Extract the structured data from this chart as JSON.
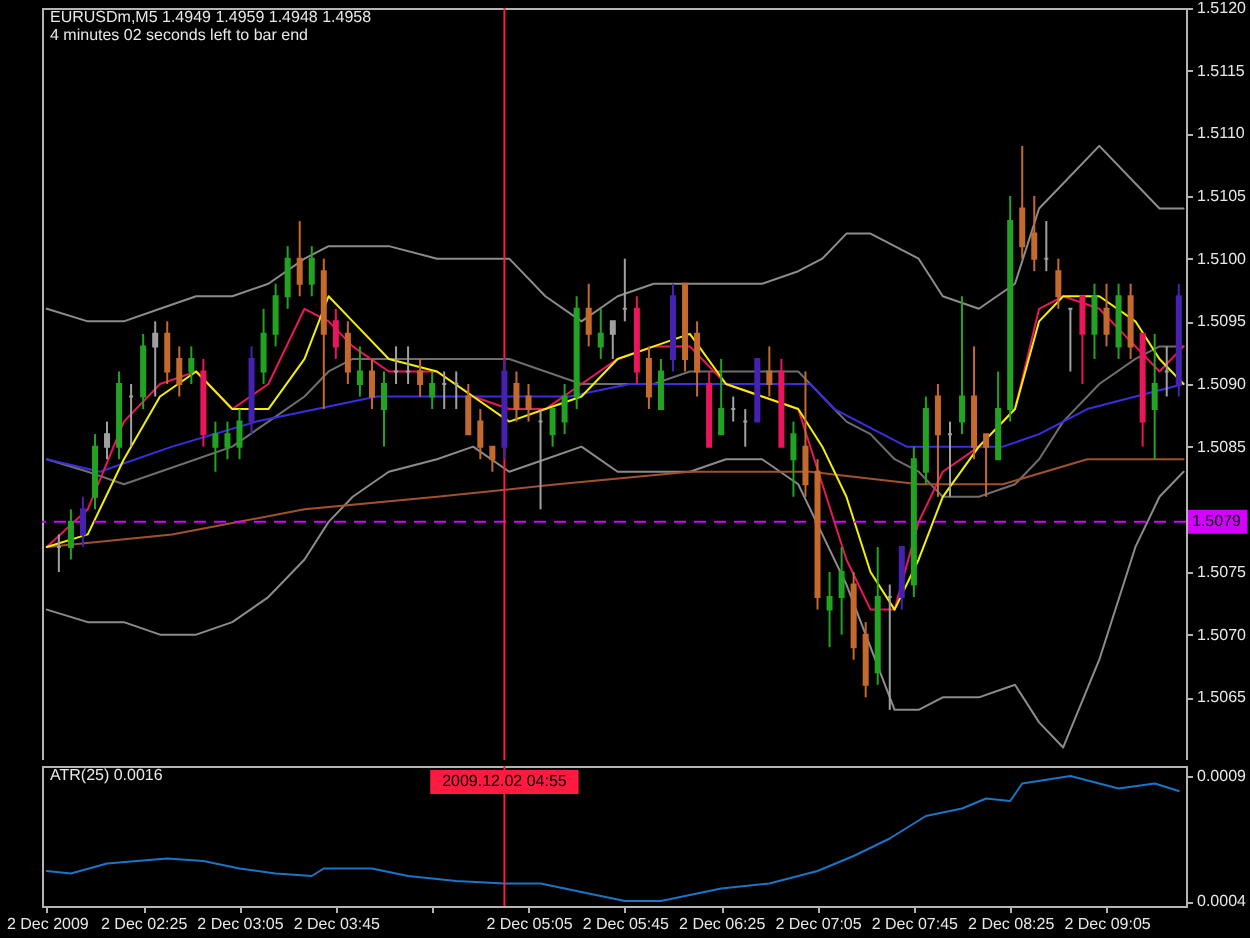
{
  "chart_data": [
    {
      "type": "candlestick",
      "title": "EURUSDm,M5 1.4949 1.4959 1.4948 1.4958",
      "subtitle": "4 minutes 02 seconds left to bar end",
      "x": [
        "2009-12-02T01:50",
        "2009-12-02T01:55",
        "2009-12-02T02:00",
        "2009-12-02T02:05",
        "2009-12-02T02:10",
        "2009-12-02T02:15",
        "2009-12-02T02:20",
        "2009-12-02T02:25",
        "2009-12-02T02:30",
        "2009-12-02T02:35",
        "2009-12-02T02:40",
        "2009-12-02T02:45",
        "2009-12-02T02:50",
        "2009-12-02T02:55",
        "2009-12-02T03:00",
        "2009-12-02T03:05",
        "2009-12-02T03:10",
        "2009-12-02T03:15",
        "2009-12-02T03:20",
        "2009-12-02T03:25",
        "2009-12-02T03:30",
        "2009-12-02T03:35",
        "2009-12-02T03:40",
        "2009-12-02T03:45",
        "2009-12-02T03:50",
        "2009-12-02T03:55",
        "2009-12-02T04:00",
        "2009-12-02T04:05",
        "2009-12-02T04:10",
        "2009-12-02T04:15",
        "2009-12-02T04:20",
        "2009-12-02T04:25",
        "2009-12-02T04:30",
        "2009-12-02T04:35",
        "2009-12-02T04:40",
        "2009-12-02T04:45",
        "2009-12-02T04:50",
        "2009-12-02T04:55",
        "2009-12-02T05:00",
        "2009-12-02T05:05",
        "2009-12-02T05:10",
        "2009-12-02T05:15",
        "2009-12-02T05:20",
        "2009-12-02T05:25",
        "2009-12-02T05:30",
        "2009-12-02T05:35",
        "2009-12-02T05:40",
        "2009-12-02T05:45",
        "2009-12-02T05:50",
        "2009-12-02T05:55",
        "2009-12-02T06:00",
        "2009-12-02T06:05",
        "2009-12-02T06:10",
        "2009-12-02T06:15",
        "2009-12-02T06:20",
        "2009-12-02T06:25",
        "2009-12-02T06:30",
        "2009-12-02T06:35",
        "2009-12-02T06:40",
        "2009-12-02T06:45",
        "2009-12-02T06:50",
        "2009-12-02T06:55",
        "2009-12-02T07:00",
        "2009-12-02T07:05",
        "2009-12-02T07:10",
        "2009-12-02T07:15",
        "2009-12-02T07:20",
        "2009-12-02T07:25",
        "2009-12-02T07:30",
        "2009-12-02T07:35",
        "2009-12-02T07:40",
        "2009-12-02T07:45",
        "2009-12-02T07:50",
        "2009-12-02T07:55",
        "2009-12-02T08:00",
        "2009-12-02T08:05",
        "2009-12-02T08:10",
        "2009-12-02T08:15",
        "2009-12-02T08:20",
        "2009-12-02T08:25",
        "2009-12-02T08:30",
        "2009-12-02T08:35",
        "2009-12-02T08:40",
        "2009-12-02T08:45",
        "2009-12-02T08:50",
        "2009-12-02T08:55",
        "2009-12-02T09:00",
        "2009-12-02T09:05",
        "2009-12-02T09:10",
        "2009-12-02T09:15",
        "2009-12-02T09:20",
        "2009-12-02T09:25",
        "2009-12-02T09:30",
        "2009-12-02T09:35"
      ],
      "ohlc": [
        [
          1.5077,
          1.5078,
          1.5075,
          1.5077
        ],
        [
          1.5077,
          1.508,
          1.5076,
          1.5079
        ],
        [
          1.5078,
          1.5081,
          1.5077,
          1.508
        ],
        [
          1.5081,
          1.5086,
          1.508,
          1.5085
        ],
        [
          1.5085,
          1.5087,
          1.5084,
          1.5086
        ],
        [
          1.5085,
          1.5091,
          1.5084,
          1.509
        ],
        [
          1.5089,
          1.509,
          1.5085,
          1.5089
        ],
        [
          1.5089,
          1.5094,
          1.5088,
          1.5093
        ],
        [
          1.5093,
          1.5095,
          1.5089,
          1.5094
        ],
        [
          1.5094,
          1.5095,
          1.509,
          1.5091
        ],
        [
          1.5092,
          1.5093,
          1.5089,
          1.509
        ],
        [
          1.5091,
          1.5093,
          1.509,
          1.5092
        ],
        [
          1.5091,
          1.5092,
          1.5085,
          1.5086
        ],
        [
          1.5085,
          1.5087,
          1.5083,
          1.5086
        ],
        [
          1.5085,
          1.5087,
          1.5084,
          1.5086
        ],
        [
          1.5085,
          1.5088,
          1.5084,
          1.5087
        ],
        [
          1.5087,
          1.5093,
          1.5086,
          1.5092
        ],
        [
          1.5091,
          1.5096,
          1.509,
          1.5094
        ],
        [
          1.5094,
          1.5098,
          1.5093,
          1.5097
        ],
        [
          1.5097,
          1.5101,
          1.5096,
          1.51
        ],
        [
          1.51,
          1.5103,
          1.5097,
          1.5098
        ],
        [
          1.5098,
          1.5101,
          1.5097,
          1.51
        ],
        [
          1.5099,
          1.51,
          1.5088,
          1.5094
        ],
        [
          1.5095,
          1.5096,
          1.5092,
          1.5093
        ],
        [
          1.5094,
          1.5095,
          1.509,
          1.5091
        ],
        [
          1.509,
          1.5093,
          1.5089,
          1.5091
        ],
        [
          1.5091,
          1.5092,
          1.5088,
          1.5089
        ],
        [
          1.5088,
          1.5091,
          1.5085,
          1.509
        ],
        [
          1.5091,
          1.5093,
          1.509,
          1.5091
        ],
        [
          1.5091,
          1.5093,
          1.509,
          1.5091
        ],
        [
          1.5091,
          1.5092,
          1.5089,
          1.509
        ],
        [
          1.5089,
          1.5091,
          1.5088,
          1.509
        ],
        [
          1.509,
          1.5091,
          1.5088,
          1.509
        ],
        [
          1.509,
          1.5091,
          1.5088,
          1.509
        ],
        [
          1.5089,
          1.509,
          1.5086,
          1.5086
        ],
        [
          1.5087,
          1.5088,
          1.5084,
          1.5085
        ],
        [
          1.5085,
          1.5085,
          1.5083,
          1.5084
        ],
        [
          1.5085,
          1.5092,
          1.5084,
          1.5091
        ],
        [
          1.509,
          1.5091,
          1.5087,
          1.5088
        ],
        [
          1.5089,
          1.509,
          1.5087,
          1.5088
        ],
        [
          1.5087,
          1.5088,
          1.508,
          1.5087
        ],
        [
          1.5086,
          1.5088,
          1.5085,
          1.5088
        ],
        [
          1.5087,
          1.509,
          1.5086,
          1.5089
        ],
        [
          1.5089,
          1.5097,
          1.5088,
          1.5096
        ],
        [
          1.5096,
          1.5098,
          1.5093,
          1.5094
        ],
        [
          1.5093,
          1.5096,
          1.5092,
          1.5094
        ],
        [
          1.5094,
          1.5095,
          1.5092,
          1.5095
        ],
        [
          1.5096,
          1.51,
          1.5095,
          1.5096
        ],
        [
          1.5096,
          1.5097,
          1.509,
          1.5091
        ],
        [
          1.5092,
          1.5093,
          1.5088,
          1.5089
        ],
        [
          1.5088,
          1.5092,
          1.5088,
          1.5091
        ],
        [
          1.5092,
          1.5098,
          1.5091,
          1.5097
        ],
        [
          1.5098,
          1.5098,
          1.5091,
          1.5092
        ],
        [
          1.5094,
          1.5095,
          1.5089,
          1.5091
        ],
        [
          1.509,
          1.5091,
          1.5085,
          1.5085
        ],
        [
          1.5086,
          1.5092,
          1.5086,
          1.5088
        ],
        [
          1.5088,
          1.5089,
          1.5087,
          1.5088
        ],
        [
          1.5087,
          1.5088,
          1.5085,
          1.5087
        ],
        [
          1.5087,
          1.5092,
          1.5087,
          1.5092
        ],
        [
          1.5091,
          1.5093,
          1.5089,
          1.509
        ],
        [
          1.5091,
          1.5092,
          1.5085,
          1.5085
        ],
        [
          1.5084,
          1.5087,
          1.5081,
          1.5086
        ],
        [
          1.5085,
          1.5091,
          1.5081,
          1.5082
        ],
        [
          1.5083,
          1.5084,
          1.5072,
          1.5073
        ],
        [
          1.5072,
          1.5075,
          1.5069,
          1.5073
        ],
        [
          1.5073,
          1.5077,
          1.507,
          1.5075
        ],
        [
          1.5074,
          1.5075,
          1.5068,
          1.5069
        ],
        [
          1.507,
          1.5071,
          1.5065,
          1.5066
        ],
        [
          1.5067,
          1.5077,
          1.5066,
          1.5073
        ],
        [
          1.5073,
          1.5074,
          1.5064,
          1.5073
        ],
        [
          1.5073,
          1.5077,
          1.5072,
          1.5077
        ],
        [
          1.5074,
          1.5085,
          1.5073,
          1.5084
        ],
        [
          1.5083,
          1.5089,
          1.5082,
          1.5088
        ],
        [
          1.5089,
          1.509,
          1.5081,
          1.5086
        ],
        [
          1.5086,
          1.5087,
          1.5081,
          1.5086
        ],
        [
          1.5087,
          1.5097,
          1.5086,
          1.5089
        ],
        [
          1.5089,
          1.5093,
          1.5084,
          1.5085
        ],
        [
          1.5086,
          1.5086,
          1.5081,
          1.5085
        ],
        [
          1.5084,
          1.5091,
          1.5084,
          1.5088
        ],
        [
          1.5088,
          1.5105,
          1.5087,
          1.5103
        ],
        [
          1.5104,
          1.5109,
          1.51,
          1.5101
        ],
        [
          1.5102,
          1.5105,
          1.5099,
          1.51
        ],
        [
          1.51,
          1.5103,
          1.5099,
          1.51
        ],
        [
          1.5099,
          1.51,
          1.5096,
          1.5097
        ],
        [
          1.5096,
          1.5096,
          1.5091,
          1.5096
        ],
        [
          1.5097,
          1.5097,
          1.509,
          1.5094
        ],
        [
          1.5094,
          1.5098,
          1.5092,
          1.5097
        ],
        [
          1.5096,
          1.5098,
          1.5093,
          1.5094
        ],
        [
          1.5093,
          1.5098,
          1.5092,
          1.5097
        ],
        [
          1.5097,
          1.5098,
          1.5092,
          1.5093
        ],
        [
          1.5094,
          1.5094,
          1.5085,
          1.5087
        ],
        [
          1.5088,
          1.5094,
          1.5084,
          1.509
        ],
        [
          1.5091,
          1.5093,
          1.5089,
          1.5091
        ],
        [
          1.509,
          1.5098,
          1.5089,
          1.5097
        ]
      ],
      "colors": [
        "#a0a0a0",
        "#22a322",
        "#4522b0",
        "#22a322",
        "#a0a0a0",
        "#22a322",
        "#a0a0a0",
        "#22a322",
        "#a0a0a0",
        "#c46a2e",
        "#c46a2e",
        "#22a322",
        "#e8175d",
        "#22a322",
        "#22a322",
        "#22a322",
        "#4522b0",
        "#22a322",
        "#22a322",
        "#22a322",
        "#c46a2e",
        "#22a322",
        "#c46a2e",
        "#e8175d",
        "#c46a2e",
        "#22a322",
        "#c46a2e",
        "#22a322",
        "#a0a0a0",
        "#a0a0a0",
        "#c46a2e",
        "#22a322",
        "#a0a0a0",
        "#a0a0a0",
        "#c46a2e",
        "#c46a2e",
        "#c46a2e",
        "#4522b0",
        "#c46a2e",
        "#c46a2e",
        "#a0a0a0",
        "#22a322",
        "#22a322",
        "#22a322",
        "#c46a2e",
        "#22a322",
        "#a0a0a0",
        "#a0a0a0",
        "#e8175d",
        "#c46a2e",
        "#22a322",
        "#4522b0",
        "#c46a2e",
        "#c46a2e",
        "#e8175d",
        "#22a322",
        "#a0a0a0",
        "#a0a0a0",
        "#4522b0",
        "#c46a2e",
        "#e8175d",
        "#22a322",
        "#c46a2e",
        "#c46a2e",
        "#22a322",
        "#22a322",
        "#c46a2e",
        "#c46a2e",
        "#22a322",
        "#a0a0a0",
        "#4522b0",
        "#22a322",
        "#22a322",
        "#c46a2e",
        "#a0a0a0",
        "#22a322",
        "#c46a2e",
        "#c46a2e",
        "#22a322",
        "#22a322",
        "#c46a2e",
        "#c46a2e",
        "#a0a0a0",
        "#c46a2e",
        "#a0a0a0",
        "#e8175d",
        "#22a322",
        "#c46a2e",
        "#22a322",
        "#c46a2e",
        "#e8175d",
        "#22a322",
        "#a0a0a0",
        "#4522b0"
      ],
      "series": [
        {
          "type": "line",
          "color": "#8c8c8c",
          "x": [
            "2009-12-02T01:45",
            "2009-12-02T02:02",
            "2009-12-02T02:17",
            "2009-12-02T02:32",
            "2009-12-02T02:47",
            "2009-12-02T03:02",
            "2009-12-02T03:17",
            "2009-12-02T03:32",
            "2009-12-02T03:42",
            "2009-12-02T03:52",
            "2009-12-02T04:07",
            "2009-12-02T04:27",
            "2009-12-02T04:42",
            "2009-12-02T04:57",
            "2009-12-02T05:12",
            "2009-12-02T05:27",
            "2009-12-02T05:42",
            "2009-12-02T05:57",
            "2009-12-02T06:12",
            "2009-12-02T06:27",
            "2009-12-02T06:42",
            "2009-12-02T06:57",
            "2009-12-02T07:07",
            "2009-12-02T07:17",
            "2009-12-02T07:27",
            "2009-12-02T07:37",
            "2009-12-02T07:47",
            "2009-12-02T07:57",
            "2009-12-02T08:12",
            "2009-12-02T08:27",
            "2009-12-02T08:37",
            "2009-12-02T08:47",
            "2009-12-02T09:02",
            "2009-12-02T09:17",
            "2009-12-02T09:27",
            "2009-12-02T09:37"
          ],
          "values": [
            1.5096,
            1.5095,
            1.5095,
            1.5096,
            1.5097,
            1.5097,
            1.5098,
            1.51,
            1.5101,
            1.5101,
            1.5101,
            1.51,
            1.51,
            1.51,
            1.5097,
            1.5095,
            1.5097,
            1.5098,
            1.5098,
            1.5098,
            1.5098,
            1.5099,
            1.51,
            1.5102,
            1.5102,
            1.5101,
            1.51,
            1.5097,
            1.5096,
            1.5098,
            1.5104,
            1.5106,
            1.5109,
            1.5106,
            1.5104,
            1.5104
          ]
        },
        {
          "type": "line",
          "color": "#6e6e6e",
          "x": [
            "2009-12-02T01:45",
            "2009-12-02T02:02",
            "2009-12-02T02:17",
            "2009-12-02T02:32",
            "2009-12-02T02:47",
            "2009-12-02T03:02",
            "2009-12-02T03:17",
            "2009-12-02T03:32",
            "2009-12-02T03:42",
            "2009-12-02T03:52",
            "2009-12-02T04:07",
            "2009-12-02T04:27",
            "2009-12-02T04:42",
            "2009-12-02T04:57",
            "2009-12-02T05:12",
            "2009-12-02T05:27",
            "2009-12-02T05:42",
            "2009-12-02T05:57",
            "2009-12-02T06:12",
            "2009-12-02T06:27",
            "2009-12-02T06:42",
            "2009-12-02T06:57",
            "2009-12-02T07:07",
            "2009-12-02T07:17",
            "2009-12-02T07:27",
            "2009-12-02T07:37",
            "2009-12-02T07:47",
            "2009-12-02T07:57",
            "2009-12-02T08:12",
            "2009-12-02T08:27",
            "2009-12-02T08:37",
            "2009-12-02T08:47",
            "2009-12-02T09:02",
            "2009-12-02T09:17",
            "2009-12-02T09:27",
            "2009-12-02T09:37"
          ],
          "values": [
            1.5084,
            1.5083,
            1.5082,
            1.5083,
            1.5084,
            1.5085,
            1.5087,
            1.5089,
            1.5091,
            1.5092,
            1.5092,
            1.5092,
            1.5092,
            1.5092,
            1.5091,
            1.509,
            1.509,
            1.509,
            1.5091,
            1.5091,
            1.5091,
            1.5091,
            1.5089,
            1.5087,
            1.5086,
            1.5084,
            1.5083,
            1.5081,
            1.5081,
            1.5082,
            1.5084,
            1.5087,
            1.509,
            1.5092,
            1.5093,
            1.5093
          ]
        },
        {
          "type": "line",
          "color": "#8c8c8c",
          "x": [
            "2009-12-02T01:45",
            "2009-12-02T02:02",
            "2009-12-02T02:17",
            "2009-12-02T02:32",
            "2009-12-02T02:47",
            "2009-12-02T03:02",
            "2009-12-02T03:17",
            "2009-12-02T03:32",
            "2009-12-02T03:42",
            "2009-12-02T03:52",
            "2009-12-02T04:07",
            "2009-12-02T04:27",
            "2009-12-02T04:42",
            "2009-12-02T04:57",
            "2009-12-02T05:12",
            "2009-12-02T05:27",
            "2009-12-02T05:42",
            "2009-12-02T05:57",
            "2009-12-02T06:12",
            "2009-12-02T06:27",
            "2009-12-02T06:42",
            "2009-12-02T06:57",
            "2009-12-02T07:07",
            "2009-12-02T07:17",
            "2009-12-02T07:27",
            "2009-12-02T07:37",
            "2009-12-02T07:47",
            "2009-12-02T07:57",
            "2009-12-02T08:12",
            "2009-12-02T08:27",
            "2009-12-02T08:37",
            "2009-12-02T08:47",
            "2009-12-02T09:02",
            "2009-12-02T09:17",
            "2009-12-02T09:27",
            "2009-12-02T09:37"
          ],
          "values": [
            1.5072,
            1.5071,
            1.5071,
            1.507,
            1.507,
            1.5071,
            1.5073,
            1.5076,
            1.5079,
            1.5081,
            1.5083,
            1.5084,
            1.5085,
            1.5083,
            1.5084,
            1.5085,
            1.5083,
            1.5083,
            1.5083,
            1.5084,
            1.5084,
            1.5082,
            1.5078,
            1.5074,
            1.5069,
            1.5064,
            1.5064,
            1.5065,
            1.5065,
            1.5066,
            1.5063,
            1.5061,
            1.5068,
            1.5077,
            1.5081,
            1.5083
          ]
        },
        {
          "type": "line",
          "color": "#a0522d",
          "x": [
            "2009-12-02T01:45",
            "2009-12-02T02:37",
            "2009-12-02T03:32",
            "2009-12-02T04:27",
            "2009-12-02T05:17",
            "2009-12-02T06:12",
            "2009-12-02T07:02",
            "2009-12-02T07:47",
            "2009-12-02T08:22",
            "2009-12-02T08:57",
            "2009-12-02T09:37"
          ],
          "values": [
            1.5077,
            1.5078,
            1.508,
            1.5081,
            1.5082,
            1.5083,
            1.5083,
            1.5082,
            1.5082,
            1.5084,
            1.5084
          ]
        },
        {
          "type": "line",
          "color": "#3a2ee0",
          "x": [
            "2009-12-02T01:45",
            "2009-12-02T02:07",
            "2009-12-02T02:37",
            "2009-12-02T03:12",
            "2009-12-02T03:37",
            "2009-12-02T04:02",
            "2009-12-02T04:27",
            "2009-12-02T04:57",
            "2009-12-02T05:22",
            "2009-12-02T05:47",
            "2009-12-02T06:12",
            "2009-12-02T06:37",
            "2009-12-02T07:02",
            "2009-12-02T07:12",
            "2009-12-02T07:22",
            "2009-12-02T07:42",
            "2009-12-02T07:57",
            "2009-12-02T08:22",
            "2009-12-02T08:37",
            "2009-12-02T08:57",
            "2009-12-02T09:17",
            "2009-12-02T09:37"
          ],
          "values": [
            1.5084,
            1.5083,
            1.5085,
            1.5087,
            1.5088,
            1.5089,
            1.5089,
            1.5089,
            1.5089,
            1.509,
            1.509,
            1.509,
            1.509,
            1.5088,
            1.5087,
            1.5085,
            1.5085,
            1.5085,
            1.5086,
            1.5088,
            1.5089,
            1.509
          ]
        },
        {
          "type": "line",
          "color": "#e8185a",
          "x": [
            "2009-12-02T01:45",
            "2009-12-02T02:02",
            "2009-12-02T02:17",
            "2009-12-02T02:32",
            "2009-12-02T02:47",
            "2009-12-02T03:02",
            "2009-12-02T03:17",
            "2009-12-02T03:32",
            "2009-12-02T03:42",
            "2009-12-02T03:52",
            "2009-12-02T04:07",
            "2009-12-02T04:27",
            "2009-12-02T04:42",
            "2009-12-02T04:57",
            "2009-12-02T05:12",
            "2009-12-02T05:27",
            "2009-12-02T05:42",
            "2009-12-02T05:57",
            "2009-12-02T06:12",
            "2009-12-02T06:27",
            "2009-12-02T06:42",
            "2009-12-02T06:57",
            "2009-12-02T07:07",
            "2009-12-02T07:17",
            "2009-12-02T07:27",
            "2009-12-02T07:37",
            "2009-12-02T07:47",
            "2009-12-02T07:57",
            "2009-12-02T08:12",
            "2009-12-02T08:27",
            "2009-12-02T08:37",
            "2009-12-02T08:47",
            "2009-12-02T09:02",
            "2009-12-02T09:17",
            "2009-12-02T09:27",
            "2009-12-02T09:37"
          ],
          "values": [
            1.5077,
            1.508,
            1.5087,
            1.509,
            1.5091,
            1.5088,
            1.509,
            1.5096,
            1.5095,
            1.5093,
            1.5091,
            1.5091,
            1.5089,
            1.5088,
            1.5088,
            1.509,
            1.5092,
            1.5093,
            1.5093,
            1.509,
            1.5089,
            1.5088,
            1.5082,
            1.5076,
            1.5072,
            1.5072,
            1.5079,
            1.5083,
            1.5085,
            1.5088,
            1.5096,
            1.5097,
            1.5096,
            1.5093,
            1.5091,
            1.5093
          ]
        },
        {
          "type": "line",
          "color": "#f2f200",
          "x": [
            "2009-12-02T01:45",
            "2009-12-02T02:02",
            "2009-12-02T02:17",
            "2009-12-02T02:32",
            "2009-12-02T02:47",
            "2009-12-02T03:02",
            "2009-12-02T03:17",
            "2009-12-02T03:32",
            "2009-12-02T03:42",
            "2009-12-02T03:52",
            "2009-12-02T04:07",
            "2009-12-02T04:27",
            "2009-12-02T04:42",
            "2009-12-02T04:57",
            "2009-12-02T05:12",
            "2009-12-02T05:27",
            "2009-12-02T05:42",
            "2009-12-02T05:57",
            "2009-12-02T06:12",
            "2009-12-02T06:27",
            "2009-12-02T06:42",
            "2009-12-02T06:57",
            "2009-12-02T07:07",
            "2009-12-02T07:17",
            "2009-12-02T07:27",
            "2009-12-02T07:37",
            "2009-12-02T07:47",
            "2009-12-02T07:57",
            "2009-12-02T08:12",
            "2009-12-02T08:27",
            "2009-12-02T08:37",
            "2009-12-02T08:47",
            "2009-12-02T09:02",
            "2009-12-02T09:17",
            "2009-12-02T09:27",
            "2009-12-02T09:37"
          ],
          "values": [
            1.5077,
            1.5078,
            1.5084,
            1.5089,
            1.5091,
            1.5088,
            1.5088,
            1.5092,
            1.5097,
            1.5095,
            1.5092,
            1.5091,
            1.5089,
            1.5087,
            1.5088,
            1.5089,
            1.5092,
            1.5093,
            1.5094,
            1.509,
            1.5089,
            1.5088,
            1.5085,
            1.5081,
            1.5075,
            1.5072,
            1.5076,
            1.5081,
            1.5085,
            1.5088,
            1.5095,
            1.5097,
            1.5097,
            1.5095,
            1.5092,
            1.509
          ]
        }
      ],
      "xlim": [
        "2009-12-02T01:43",
        "2009-12-02T09:38"
      ],
      "ylim": [
        1.506,
        1.512
      ],
      "yticks": [
        1.5065,
        {
          "value": 1.507,
          "label": "1.5070"
        },
        1.5075,
        1.5085,
        {
          "value": 1.509,
          "label": "1.5090"
        },
        1.5095,
        {
          "value": 1.51,
          "label": "1.5100"
        },
        1.5105,
        {
          "value": 1.511,
          "label": "1.5110"
        },
        1.5115,
        {
          "value": 1.512,
          "label": "1.5120"
        }
      ],
      "tick_labels": "y",
      "ref_lines": [
        {
          "axis": "y",
          "value": 1.5079,
          "label": "1.5079",
          "color": "#d400ff",
          "line_style": "dashed"
        },
        {
          "axis": "x",
          "value": "2009-12-02T04:55",
          "color": "#ff1a40"
        }
      ]
    },
    {
      "type": "line",
      "title": "ATR(25) 0.0016",
      "color": "#1c74c4",
      "x": [
        "2009-12-02T01:45",
        "2009-12-02T01:55",
        "2009-12-02T02:10",
        "2009-12-02T02:35",
        "2009-12-02T02:50",
        "2009-12-02T03:05",
        "2009-12-02T03:20",
        "2009-12-02T03:35",
        "2009-12-02T03:40",
        "2009-12-02T04:00",
        "2009-12-02T04:15",
        "2009-12-02T04:35",
        "2009-12-02T04:55",
        "2009-12-02T05:10",
        "2009-12-02T05:20",
        "2009-12-02T05:45",
        "2009-12-02T06:00",
        "2009-12-02T06:25",
        "2009-12-02T06:45",
        "2009-12-02T07:05",
        "2009-12-02T07:20",
        "2009-12-02T07:35",
        "2009-12-02T07:50",
        "2009-12-02T08:05",
        "2009-12-02T08:15",
        "2009-12-02T08:25",
        "2009-12-02T08:30",
        "2009-12-02T08:50",
        "2009-12-02T09:10",
        "2009-12-02T09:25",
        "2009-12-02T09:35"
      ],
      "values": [
        0.00052,
        0.00051,
        0.00055,
        0.00057,
        0.00056,
        0.00053,
        0.00051,
        0.0005,
        0.00053,
        0.00053,
        0.0005,
        0.00048,
        0.00047,
        0.00047,
        0.00045,
        0.0004,
        0.0004,
        0.00045,
        0.00047,
        0.00052,
        0.00058,
        0.00065,
        0.00074,
        0.00077,
        0.00081,
        0.0008,
        0.00087,
        0.0009,
        0.00085,
        0.00087,
        0.00084
      ],
      "xlim": [
        "2009-12-02T01:43",
        "2009-12-02T09:38"
      ],
      "xticks": [
        {
          "value": "2009-12-02T01:45",
          "label": "2 Dec 2009"
        },
        {
          "value": "2009-12-02T02:25",
          "label": "2 Dec 02:25"
        },
        {
          "value": "2009-12-02T03:05",
          "label": "2 Dec 03:05"
        },
        {
          "value": "2009-12-02T03:45",
          "label": "2 Dec 03:45"
        },
        {
          "value": "2009-12-02T04:25",
          "label": null
        },
        {
          "value": "2009-12-02T05:05",
          "label": "2 Dec 05:05"
        },
        {
          "value": "2009-12-02T05:45",
          "label": "2 Dec 05:45"
        },
        {
          "value": "2009-12-02T06:25",
          "label": "2 Dec 06:25"
        },
        {
          "value": "2009-12-02T07:05",
          "label": "2 Dec 07:05"
        },
        {
          "value": "2009-12-02T07:45",
          "label": "2 Dec 07:45"
        },
        {
          "value": "2009-12-02T08:25",
          "label": "2 Dec 08:25"
        },
        {
          "value": "2009-12-02T09:05",
          "label": "2 Dec 09:05"
        }
      ],
      "ylim": [
        0.00038,
        0.00094
      ],
      "yticks": [
        0.0004,
        0.0009
      ],
      "ref_lines": [
        {
          "axis": "x",
          "value": "2009-12-02T04:55",
          "label": "2009.12.02 04:55",
          "color": "#ff1a40"
        }
      ]
    }
  ]
}
